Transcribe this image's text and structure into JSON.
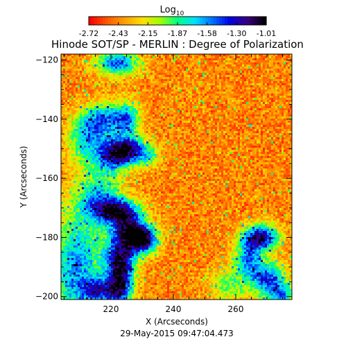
{
  "chart_data": {
    "type": "heatmap",
    "title": "Hinode SOT/SP - MERLIN : Degree of Polarization",
    "colorbar": {
      "label_main": "Log",
      "label_sub": "10",
      "ticks": [
        "-2.72",
        "-2.43",
        "-2.15",
        "-1.87",
        "-1.58",
        "-1.30",
        "-1.01"
      ],
      "range": [
        -2.72,
        -1.01
      ],
      "colors": [
        "#ff0000",
        "#ff5a00",
        "#ffa000",
        "#ffe000",
        "#a0ff00",
        "#00ff80",
        "#00e0ff",
        "#0070ff",
        "#0000e0",
        "#3a0080",
        "#000000"
      ]
    },
    "xlabel": "X (Arcseconds)",
    "ylabel": "Y (Arcseconds)",
    "xlim": [
      204,
      278
    ],
    "ylim": [
      -201,
      -118
    ],
    "xticks": [
      220,
      240,
      260
    ],
    "yticks": [
      -200,
      -180,
      -160,
      -140,
      -120
    ],
    "grid": false,
    "features": [
      {
        "x": 209,
        "y": -190,
        "sx": 6,
        "sy": 14,
        "amp": 0.5
      },
      {
        "x": 212,
        "y": -146,
        "sx": 4,
        "sy": 6,
        "amp": 0.45
      },
      {
        "x": 222,
        "y": -121,
        "sx": 5,
        "sy": 3,
        "amp": 0.55
      },
      {
        "x": 218,
        "y": -140,
        "sx": 4,
        "sy": 4,
        "amp": 0.45
      },
      {
        "x": 225,
        "y": -140,
        "sx": 3,
        "sy": 4,
        "amp": 0.5
      },
      {
        "x": 221,
        "y": -152,
        "sx": 4,
        "sy": 4,
        "amp": 0.7
      },
      {
        "x": 226,
        "y": -150,
        "sx": 3,
        "sy": 3,
        "amp": 0.45
      },
      {
        "x": 231,
        "y": -152,
        "sx": 3,
        "sy": 3,
        "amp": 0.4
      },
      {
        "x": 216,
        "y": -166,
        "sx": 5,
        "sy": 6,
        "amp": 0.4
      },
      {
        "x": 222,
        "y": -171,
        "sx": 5,
        "sy": 3,
        "amp": 0.65
      },
      {
        "x": 226,
        "y": -178,
        "sx": 4,
        "sy": 4,
        "amp": 0.75
      },
      {
        "x": 231,
        "y": -181,
        "sx": 3,
        "sy": 3,
        "amp": 0.65
      },
      {
        "x": 223,
        "y": -186,
        "sx": 4,
        "sy": 4,
        "amp": 0.45
      },
      {
        "x": 223,
        "y": -195,
        "sx": 3,
        "sy": 6,
        "amp": 0.75
      },
      {
        "x": 216,
        "y": -198,
        "sx": 4,
        "sy": 3,
        "amp": 0.45
      },
      {
        "x": 268,
        "y": -180,
        "sx": 4,
        "sy": 3,
        "amp": 0.75
      },
      {
        "x": 264,
        "y": -187,
        "sx": 3,
        "sy": 4,
        "amp": 0.5
      },
      {
        "x": 270,
        "y": -194,
        "sx": 4,
        "sy": 4,
        "amp": 0.6
      },
      {
        "x": 275,
        "y": -200,
        "sx": 3,
        "sy": 3,
        "amp": 0.45
      },
      {
        "x": 258,
        "y": -196,
        "sx": 4,
        "sy": 4,
        "amp": 0.3
      }
    ]
  },
  "timestamp": "29-May-2015 09:47:04.473"
}
